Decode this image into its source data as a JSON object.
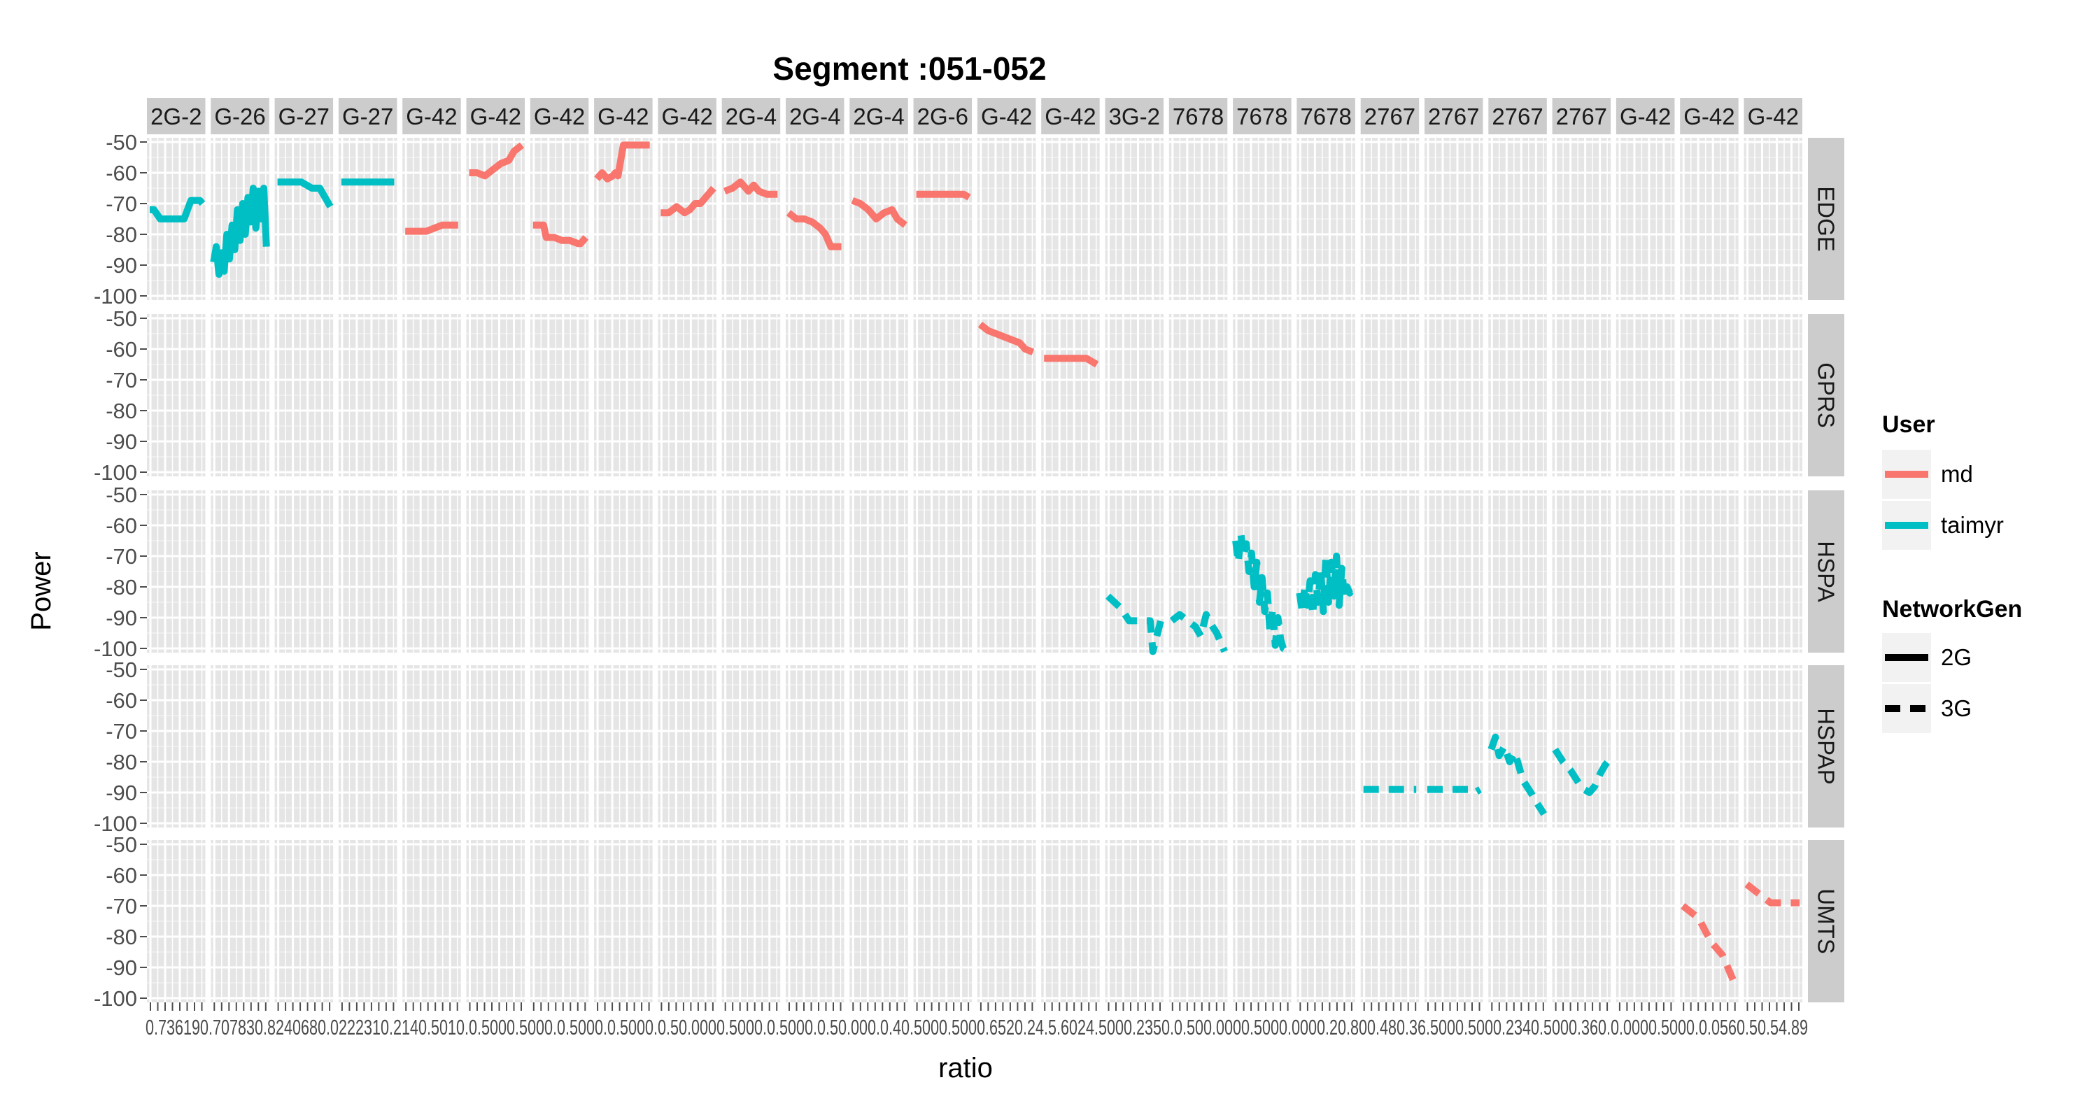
{
  "chart_data": {
    "type": "line",
    "title": "Segment :051-052",
    "xlabel": "ratio",
    "ylabel": "Power",
    "ylim": [
      -100,
      -50
    ],
    "y_ticks": [
      "-50",
      "-60",
      "-70",
      "-80",
      "-90",
      "-100"
    ],
    "x_tick_labels_note": "0.736190.707830.8240680.0222310.2140.5010.0.5000.5000.0.5000.0.5000.0.50.0000.5000.0.5000.0.50.000.0.40.5000.5000.6520.24.5.6024.5000.2350.0.500.0000.5000.0000.20.800.480.36.5000.5000.2340.5000.360.0.0000.5000.0.0560.50.54.89",
    "x_tick_labels_text": "0.736190.707830.8240680.0222310.2140.5010.0.5000.5000.0.5000.0.5000.0.50.0000.5000.0.5000.0.50.000.0.40.5000.5000.6520.24.5.6024.5000.2350.0.500.0000.5000.0000.20.800.480.36.5000.5000.2340.5000.360.0.0000.5000.0.0560.50.54.89",
    "column_strips": [
      "2G-2",
      "G-26",
      "G-27",
      "G-27",
      "G-42",
      "G-42",
      "G-42",
      "G-42",
      "G-42",
      "2G-4",
      "2G-4",
      "2G-4",
      "2G-6",
      "G-42",
      "G-42",
      "3G-2",
      "7678",
      "7678",
      "7678",
      "2767",
      "2767",
      "2767",
      "2767",
      "G-42",
      "G-42",
      "G-42"
    ],
    "row_strips": [
      "EDGE",
      "GPRS",
      "HSPA",
      "HSPAP",
      "UMTS"
    ],
    "legend_position": "right",
    "legends": [
      {
        "title": "User",
        "entries": [
          {
            "label": "md",
            "color": "#F8766D"
          },
          {
            "label": "taimyr",
            "color": "#00BFC4"
          }
        ]
      },
      {
        "title": "NetworkGen",
        "entries": [
          {
            "label": "2G",
            "linetype": "solid"
          },
          {
            "label": "3G",
            "linetype": "dashed"
          }
        ]
      }
    ],
    "series": [
      {
        "user": "taimyr",
        "gen": "2G",
        "row": 0,
        "col": 0,
        "x": [
          0.0,
          0.08,
          0.2,
          0.45,
          0.5,
          0.65,
          0.78,
          0.8,
          0.95,
          1.0
        ],
        "y": [
          -72,
          -72,
          -75,
          -75,
          -75,
          -75,
          -69,
          -69,
          -69,
          -70
        ]
      },
      {
        "user": "taimyr",
        "gen": "2G",
        "row": 0,
        "col": 1,
        "x": [
          0.0,
          0.05,
          0.1,
          0.15,
          0.2,
          0.25,
          0.3,
          0.35,
          0.4,
          0.45,
          0.5,
          0.55,
          0.6,
          0.65,
          0.7,
          0.75,
          0.8,
          0.85,
          0.9,
          0.95,
          1.0
        ],
        "y": [
          -89,
          -84,
          -93,
          -86,
          -92,
          -80,
          -88,
          -77,
          -85,
          -72,
          -82,
          -70,
          -80,
          -68,
          -76,
          -65,
          -78,
          -66,
          -75,
          -65,
          -84
        ]
      },
      {
        "user": "taimyr",
        "gen": "2G",
        "row": 0,
        "col": 2,
        "x": [
          0.0,
          0.3,
          0.45,
          0.55,
          0.65,
          0.8,
          0.9,
          1.0
        ],
        "y": [
          -63,
          -63,
          -63,
          -64,
          -65,
          -65,
          -68,
          -71
        ]
      },
      {
        "user": "taimyr",
        "gen": "2G",
        "row": 0,
        "col": 3,
        "x": [
          0.0,
          0.5,
          1.0
        ],
        "y": [
          -63,
          -63,
          -63
        ]
      },
      {
        "user": "md",
        "gen": "2G",
        "row": 0,
        "col": 4,
        "x": [
          0.0,
          0.4,
          0.55,
          0.7,
          1.0
        ],
        "y": [
          -79,
          -79,
          -78,
          -77,
          -77
        ]
      },
      {
        "user": "md",
        "gen": "2G",
        "row": 0,
        "col": 5,
        "x": [
          0.0,
          0.15,
          0.3,
          0.45,
          0.6,
          0.75,
          0.85,
          1.0
        ],
        "y": [
          -60,
          -60,
          -61,
          -59,
          -57,
          -56,
          -53,
          -51
        ]
      },
      {
        "user": "md",
        "gen": "2G",
        "row": 0,
        "col": 6,
        "x": [
          0.0,
          0.1,
          0.2,
          0.25,
          0.4,
          0.55,
          0.7,
          0.85,
          0.9,
          1.0
        ],
        "y": [
          -77,
          -77,
          -77,
          -81,
          -81,
          -82,
          -82,
          -83,
          -83,
          -81
        ]
      },
      {
        "user": "md",
        "gen": "2G",
        "row": 0,
        "col": 7,
        "x": [
          0.0,
          0.1,
          0.2,
          0.3,
          0.35,
          0.4,
          0.5,
          0.6,
          0.8,
          1.0
        ],
        "y": [
          -62,
          -60,
          -62,
          -61,
          -60,
          -61,
          -51,
          -51,
          -51,
          -51
        ]
      },
      {
        "user": "md",
        "gen": "2G",
        "row": 0,
        "col": 8,
        "x": [
          0.0,
          0.15,
          0.3,
          0.45,
          0.55,
          0.65,
          0.75,
          0.85,
          0.95,
          1.0
        ],
        "y": [
          -73,
          -73,
          -71,
          -73,
          -72,
          -70,
          -70,
          -68,
          -66,
          -65
        ]
      },
      {
        "user": "md",
        "gen": "2G",
        "row": 0,
        "col": 9,
        "x": [
          0.0,
          0.15,
          0.3,
          0.45,
          0.55,
          0.65,
          0.8,
          1.0
        ],
        "y": [
          -66,
          -65,
          -63,
          -66,
          -64,
          -66,
          -67,
          -67
        ]
      },
      {
        "user": "md",
        "gen": "2G",
        "row": 0,
        "col": 10,
        "x": [
          0.0,
          0.15,
          0.3,
          0.45,
          0.6,
          0.7,
          0.8,
          1.0
        ],
        "y": [
          -73,
          -75,
          -75,
          -76,
          -78,
          -80,
          -84,
          -84
        ]
      },
      {
        "user": "md",
        "gen": "2G",
        "row": 0,
        "col": 11,
        "x": [
          0.0,
          0.15,
          0.3,
          0.45,
          0.6,
          0.75,
          0.85,
          1.0
        ],
        "y": [
          -69,
          -70,
          -72,
          -75,
          -73,
          -72,
          -75,
          -77
        ]
      },
      {
        "user": "md",
        "gen": "2G",
        "row": 0,
        "col": 12,
        "x": [
          0.0,
          0.3,
          0.6,
          0.8,
          0.9,
          1.0
        ],
        "y": [
          -67,
          -67,
          -67,
          -67,
          -67,
          -68
        ]
      },
      {
        "user": "md",
        "gen": "2G",
        "row": 1,
        "col": 13,
        "x": [
          0.0,
          0.15,
          0.3,
          0.45,
          0.6,
          0.75,
          0.85,
          1.0
        ],
        "y": [
          -52,
          -54,
          -55,
          -56,
          -57,
          -58,
          -60,
          -61
        ]
      },
      {
        "user": "md",
        "gen": "2G",
        "row": 1,
        "col": 14,
        "x": [
          0.0,
          0.3,
          0.6,
          0.8,
          0.9,
          1.0
        ],
        "y": [
          -63,
          -63,
          -63,
          -63,
          -64,
          -65
        ]
      },
      {
        "user": "taimyr",
        "gen": "3G",
        "row": 2,
        "col": 15,
        "x": [
          0.0,
          0.25,
          0.4,
          0.55,
          0.7,
          0.8,
          0.85,
          1.0
        ],
        "y": [
          -83,
          -87,
          -91,
          -91,
          -91,
          -91,
          -101,
          -91
        ]
      },
      {
        "user": "taimyr",
        "gen": "3G",
        "row": 2,
        "col": 16,
        "x": [
          0.0,
          0.15,
          0.3,
          0.45,
          0.55,
          0.65,
          0.7,
          0.85,
          1.0
        ],
        "y": [
          -91,
          -89,
          -91,
          -93,
          -96,
          -89,
          -91,
          -95,
          -101
        ]
      },
      {
        "user": "taimyr",
        "gen": "3G",
        "row": 2,
        "col": 17,
        "x": [
          0.0,
          0.05,
          0.1,
          0.15,
          0.2,
          0.25,
          0.3,
          0.35,
          0.4,
          0.45,
          0.5,
          0.55,
          0.6,
          0.65,
          0.7,
          0.75,
          0.8,
          0.85,
          0.9,
          1.0
        ],
        "y": [
          -65,
          -72,
          -63,
          -70,
          -66,
          -75,
          -69,
          -80,
          -72,
          -85,
          -77,
          -88,
          -82,
          -95,
          -87,
          -99,
          -90,
          -97,
          -100,
          -101
        ]
      },
      {
        "user": "taimyr",
        "gen": "3G",
        "row": 2,
        "col": 18,
        "x": [
          0.0,
          0.05,
          0.1,
          0.15,
          0.2,
          0.25,
          0.3,
          0.35,
          0.4,
          0.45,
          0.5,
          0.55,
          0.6,
          0.65,
          0.7,
          0.75,
          0.8,
          0.85,
          0.9,
          0.95,
          1.0
        ],
        "y": [
          -82,
          -88,
          -80,
          -86,
          -78,
          -89,
          -76,
          -85,
          -74,
          -88,
          -70,
          -85,
          -72,
          -83,
          -70,
          -86,
          -74,
          -84,
          -80,
          -82,
          -80
        ]
      },
      {
        "user": "taimyr",
        "gen": "3G",
        "row": 3,
        "col": 19,
        "x": [
          0.0,
          0.3,
          0.6,
          0.9,
          1.0
        ],
        "y": [
          -89,
          -89,
          -89,
          -89,
          -89
        ]
      },
      {
        "user": "taimyr",
        "gen": "3G",
        "row": 3,
        "col": 20,
        "x": [
          0.0,
          0.3,
          0.6,
          0.8,
          0.9,
          1.0
        ],
        "y": [
          -89,
          -89,
          -89,
          -89,
          -90,
          -89
        ]
      },
      {
        "user": "taimyr",
        "gen": "3G",
        "row": 3,
        "col": 21,
        "x": [
          0.0,
          0.08,
          0.15,
          0.25,
          0.35,
          0.45,
          0.6,
          0.75,
          0.85,
          1.0
        ],
        "y": [
          -76,
          -72,
          -78,
          -75,
          -80,
          -77,
          -86,
          -90,
          -93,
          -97
        ]
      },
      {
        "user": "taimyr",
        "gen": "3G",
        "row": 3,
        "col": 22,
        "x": [
          0.0,
          0.15,
          0.3,
          0.45,
          0.55,
          0.65,
          0.75,
          0.85,
          0.95,
          1.0
        ],
        "y": [
          -76,
          -80,
          -83,
          -87,
          -89,
          -90,
          -88,
          -84,
          -81,
          -80
        ]
      },
      {
        "user": "md",
        "gen": "3G",
        "row": 4,
        "col": 24,
        "x": [
          0.0,
          0.15,
          0.3,
          0.45,
          0.55,
          0.65,
          0.75,
          0.85,
          0.95,
          1.0
        ],
        "y": [
          -70,
          -72,
          -74,
          -79,
          -82,
          -84,
          -86,
          -90,
          -94,
          -96
        ]
      },
      {
        "user": "md",
        "gen": "3G",
        "row": 4,
        "col": 25,
        "x": [
          0.0,
          0.15,
          0.3,
          0.45,
          0.6,
          0.75,
          0.9,
          1.0
        ],
        "y": [
          -63,
          -65,
          -67,
          -69,
          -69,
          -69,
          -69,
          -69
        ]
      }
    ]
  }
}
